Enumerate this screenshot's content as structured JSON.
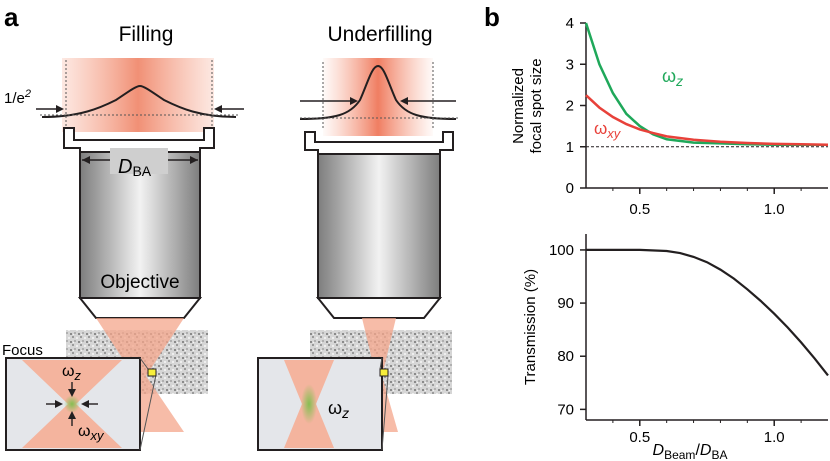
{
  "panel_a": {
    "letter": "a",
    "left_title": "Filling",
    "right_title": "Underfilling",
    "beam_width_label": "1/e",
    "beam_width_sup": "2",
    "aperture_label_main": "D",
    "aperture_label_sub": "BA",
    "objective_label": "Objective",
    "focus_label": "Focus",
    "inset_left_omega_z": "ω",
    "inset_left_omega_z_sub": "z",
    "inset_left_omega_xy": "ω",
    "inset_left_omega_xy_sub": "xy",
    "inset_right_omega_z": "ω",
    "inset_right_omega_z_sub": "z"
  },
  "panel_b": {
    "letter": "b",
    "colors": {
      "omega_z": "#1fa85a",
      "omega_xy": "#e8413a",
      "transmission": "#231f20"
    }
  },
  "chart_data": [
    {
      "type": "line",
      "ylabel_line1": "Normalized",
      "ylabel_line2": "focal spot size",
      "xlim": [
        0.3,
        1.2
      ],
      "ylim": [
        0,
        4
      ],
      "yticks": [
        "0",
        "1",
        "2",
        "3",
        "4"
      ],
      "xticks": [
        "0.5",
        "1.0"
      ],
      "reference_line_y": 1,
      "series": [
        {
          "name": "ω",
          "sub": "z",
          "color": "#1fa85a",
          "x": [
            0.3,
            0.35,
            0.4,
            0.45,
            0.5,
            0.55,
            0.6,
            0.7,
            0.8,
            0.9,
            1.0,
            1.1,
            1.2
          ],
          "y": [
            4.0,
            3.0,
            2.3,
            1.8,
            1.5,
            1.3,
            1.18,
            1.1,
            1.08,
            1.06,
            1.05,
            1.05,
            1.05
          ]
        },
        {
          "name": "ω",
          "sub": "xy",
          "color": "#e8413a",
          "x": [
            0.3,
            0.35,
            0.4,
            0.45,
            0.5,
            0.55,
            0.6,
            0.7,
            0.8,
            0.9,
            1.0,
            1.1,
            1.2
          ],
          "y": [
            2.25,
            1.95,
            1.72,
            1.55,
            1.42,
            1.33,
            1.25,
            1.17,
            1.12,
            1.09,
            1.07,
            1.06,
            1.05
          ]
        }
      ]
    },
    {
      "type": "line",
      "ylabel": "Transmission (%)",
      "xlabel_main": "D",
      "xlabel_sub1": "Beam",
      "xlabel_slash": "/",
      "xlabel_main2": "D",
      "xlabel_sub2": "BA",
      "xlim": [
        0.3,
        1.2
      ],
      "ylim": [
        68,
        103
      ],
      "yticks": [
        "70",
        "80",
        "90",
        "100"
      ],
      "xticks": [
        "0.5",
        "1.0"
      ],
      "series": [
        {
          "color": "#231f20",
          "x": [
            0.3,
            0.4,
            0.5,
            0.6,
            0.65,
            0.7,
            0.75,
            0.8,
            0.85,
            0.9,
            0.95,
            1.0,
            1.05,
            1.1,
            1.15,
            1.2
          ],
          "y": [
            100,
            100,
            100,
            99.8,
            99.4,
            98.7,
            97.7,
            96.3,
            94.6,
            92.6,
            90.4,
            88.0,
            85.4,
            82.6,
            79.6,
            76.4
          ]
        }
      ]
    }
  ]
}
